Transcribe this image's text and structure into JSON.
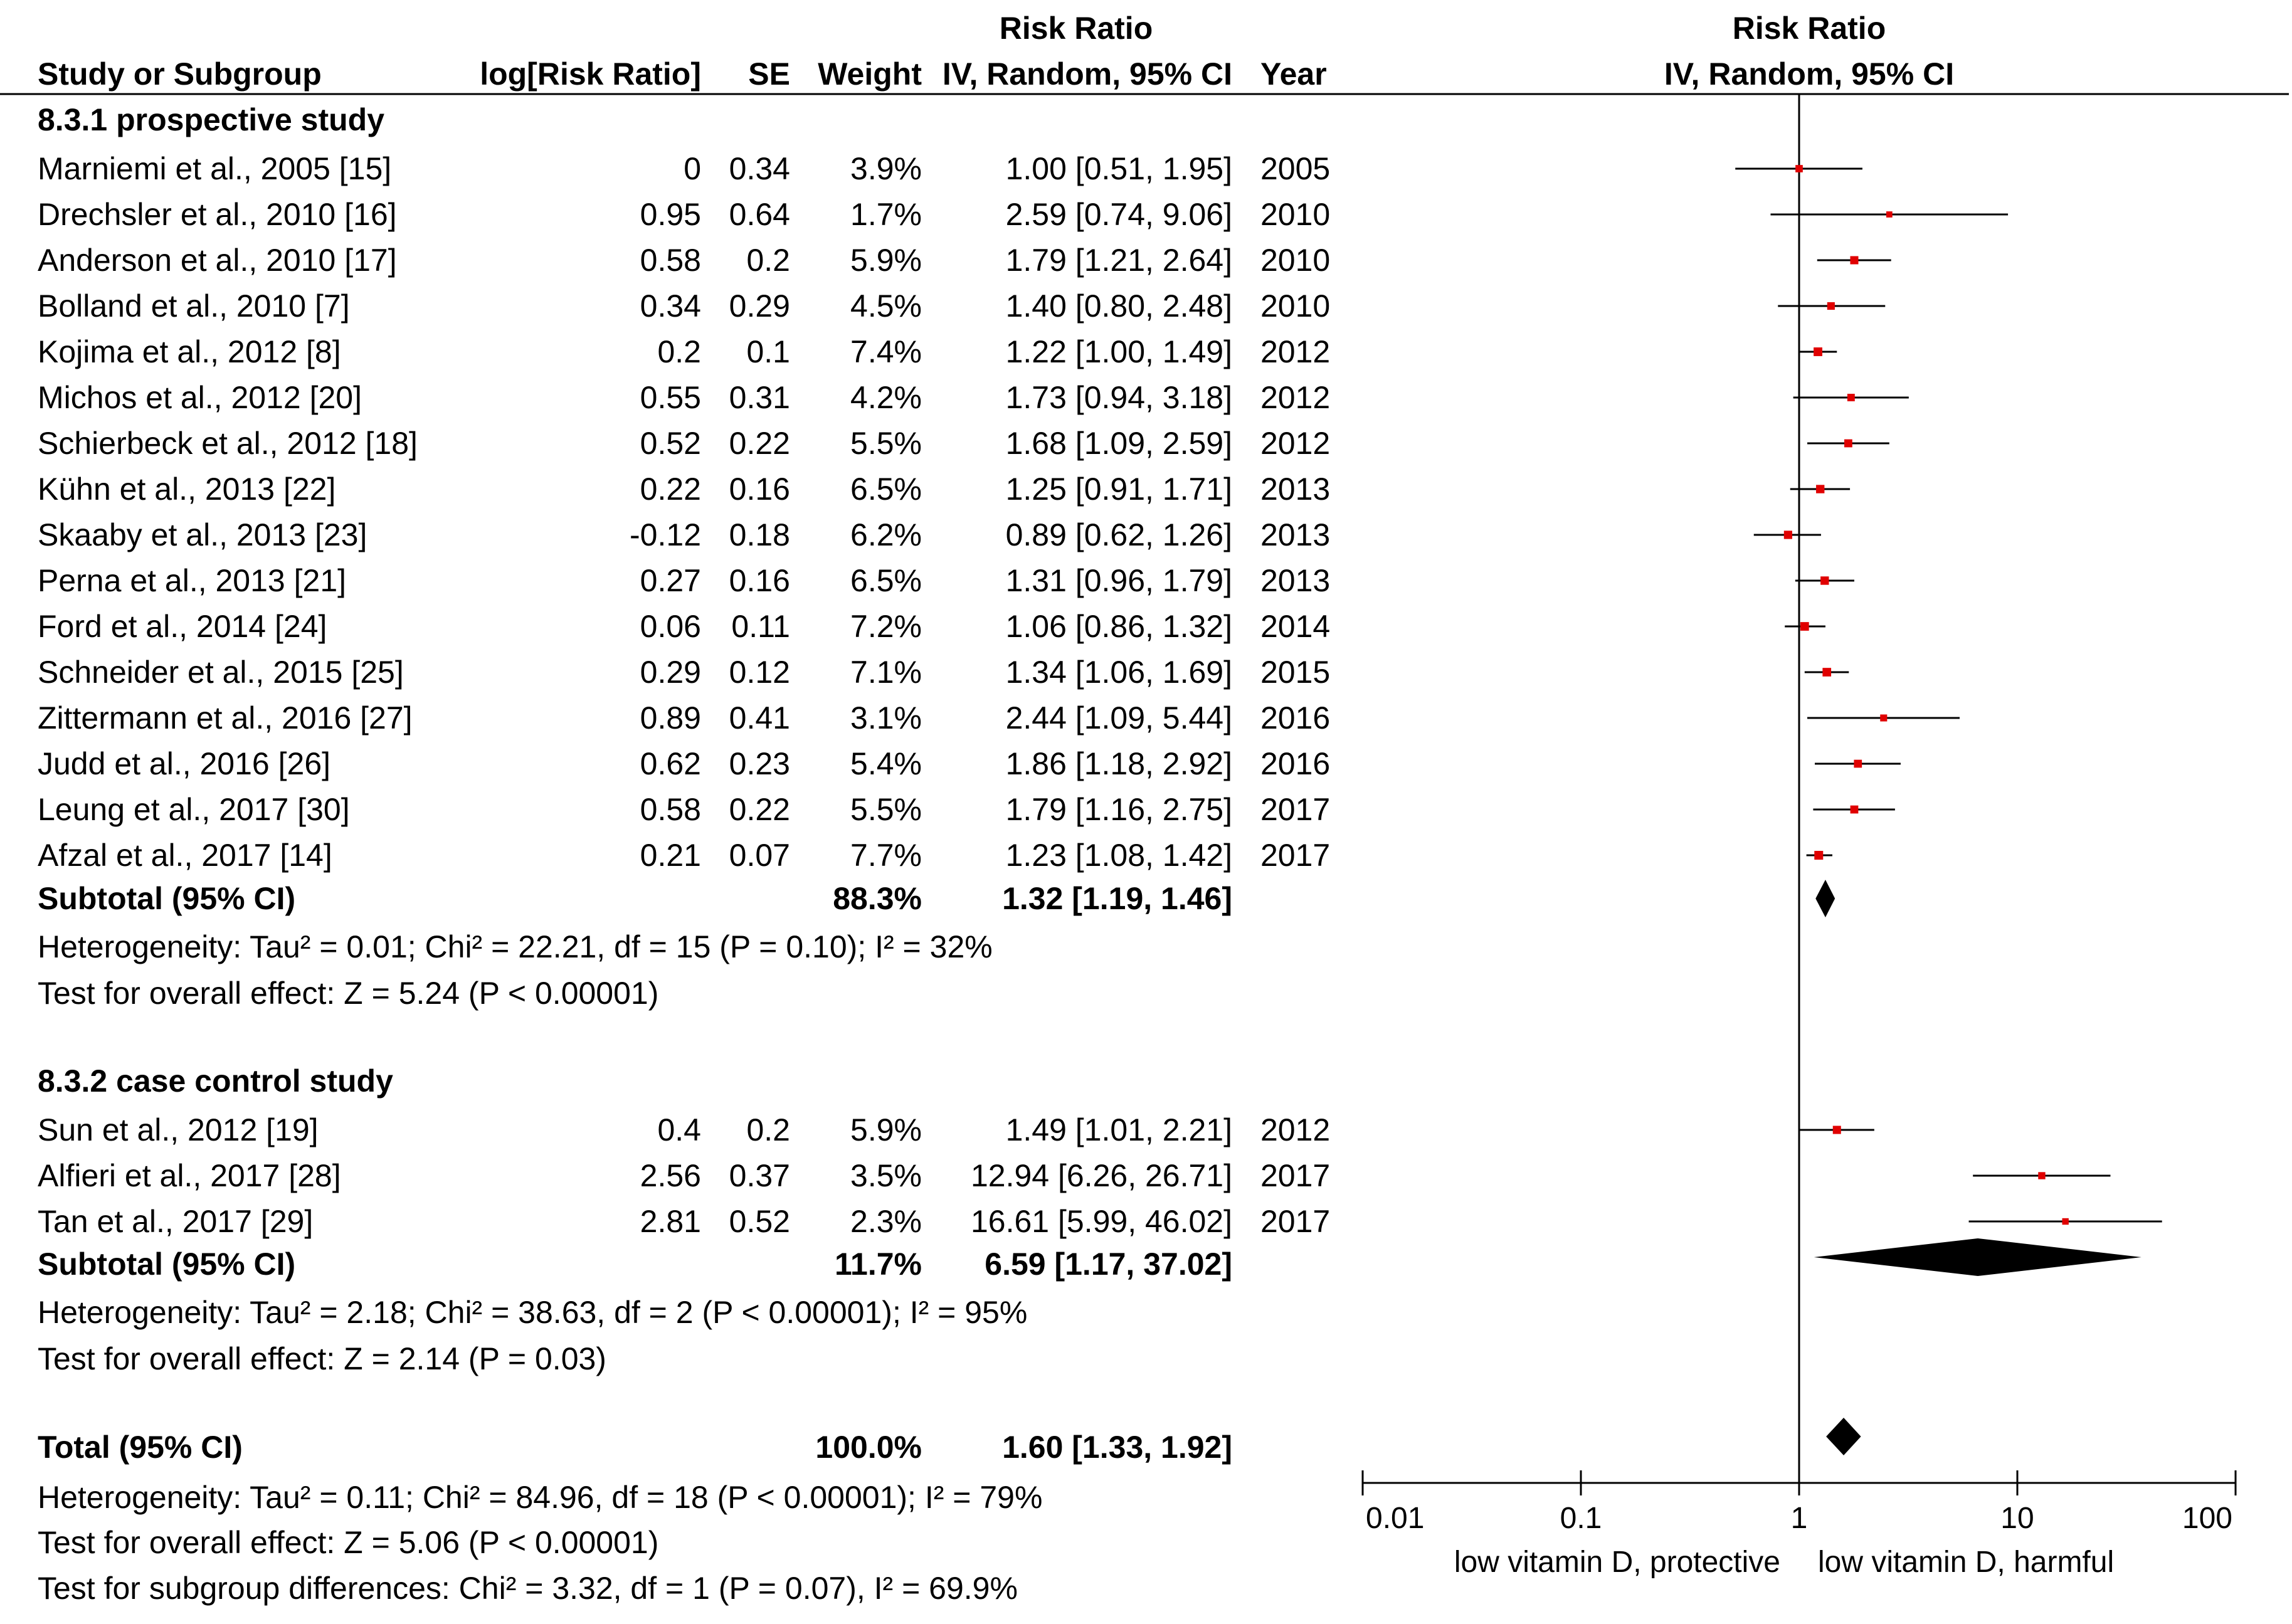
{
  "chart_data": {
    "type": "forest",
    "header": {
      "group_title_left": "Risk Ratio",
      "group_title_right": "Risk Ratio",
      "col_study": "Study or Subgroup",
      "col_logrr": "log[Risk Ratio]",
      "col_se": "SE",
      "col_weight": "Weight",
      "col_ci": "IV, Random, 95% CI",
      "col_year": "Year",
      "plot_title": "IV, Random, 95% CI"
    },
    "subgroups": [
      {
        "name": "8.3.1 prospective study",
        "studies": [
          {
            "study": "Marniemi et al., 2005 [15]",
            "logrr": "0",
            "se": "0.34",
            "weight": "3.9%",
            "ci": "1.00 [0.51, 1.95]",
            "year": "2005",
            "rr": 1.0,
            "lo": 0.51,
            "hi": 1.95
          },
          {
            "study": "Drechsler et al.,  2010 [16]",
            "logrr": "0.95",
            "se": "0.64",
            "weight": "1.7%",
            "ci": "2.59 [0.74, 9.06]",
            "year": "2010",
            "rr": 2.59,
            "lo": 0.74,
            "hi": 9.06
          },
          {
            "study": "Anderson et al., 2010 [17]",
            "logrr": "0.58",
            "se": "0.2",
            "weight": "5.9%",
            "ci": "1.79 [1.21, 2.64]",
            "year": "2010",
            "rr": 1.79,
            "lo": 1.21,
            "hi": 2.64
          },
          {
            "study": "Bolland et al., 2010 [7]",
            "logrr": "0.34",
            "se": "0.29",
            "weight": "4.5%",
            "ci": "1.40 [0.80, 2.48]",
            "year": "2010",
            "rr": 1.4,
            "lo": 0.8,
            "hi": 2.48
          },
          {
            "study": "Kojima et al., 2012 [8]",
            "logrr": "0.2",
            "se": "0.1",
            "weight": "7.4%",
            "ci": "1.22 [1.00, 1.49]",
            "year": "2012",
            "rr": 1.22,
            "lo": 1.0,
            "hi": 1.49
          },
          {
            "study": "Michos et al., 2012 [20]",
            "logrr": "0.55",
            "se": "0.31",
            "weight": "4.2%",
            "ci": "1.73 [0.94, 3.18]",
            "year": "2012",
            "rr": 1.73,
            "lo": 0.94,
            "hi": 3.18
          },
          {
            "study": "Schierbeck et al., 2012 [18]",
            "logrr": "0.52",
            "se": "0.22",
            "weight": "5.5%",
            "ci": "1.68 [1.09, 2.59]",
            "year": "2012",
            "rr": 1.68,
            "lo": 1.09,
            "hi": 2.59
          },
          {
            "study": "Kühn et al., 2013 [22]",
            "logrr": "0.22",
            "se": "0.16",
            "weight": "6.5%",
            "ci": "1.25 [0.91, 1.71]",
            "year": "2013",
            "rr": 1.25,
            "lo": 0.91,
            "hi": 1.71
          },
          {
            "study": "Skaaby et al., 2013 [23]",
            "logrr": "-0.12",
            "se": "0.18",
            "weight": "6.2%",
            "ci": "0.89 [0.62, 1.26]",
            "year": "2013",
            "rr": 0.89,
            "lo": 0.62,
            "hi": 1.26
          },
          {
            "study": "Perna et al., 2013 [21]",
            "logrr": "0.27",
            "se": "0.16",
            "weight": "6.5%",
            "ci": "1.31 [0.96, 1.79]",
            "year": "2013",
            "rr": 1.31,
            "lo": 0.96,
            "hi": 1.79
          },
          {
            "study": "Ford et al., 2014 [24]",
            "logrr": "0.06",
            "se": "0.11",
            "weight": "7.2%",
            "ci": "1.06 [0.86, 1.32]",
            "year": "2014",
            "rr": 1.06,
            "lo": 0.86,
            "hi": 1.32
          },
          {
            "study": "Schneider et al., 2015 [25]",
            "logrr": "0.29",
            "se": "0.12",
            "weight": "7.1%",
            "ci": "1.34 [1.06, 1.69]",
            "year": "2015",
            "rr": 1.34,
            "lo": 1.06,
            "hi": 1.69
          },
          {
            "study": "Zittermann et al., 2016 [27]",
            "logrr": "0.89",
            "se": "0.41",
            "weight": "3.1%",
            "ci": "2.44 [1.09, 5.44]",
            "year": "2016",
            "rr": 2.44,
            "lo": 1.09,
            "hi": 5.44
          },
          {
            "study": "Judd et al., 2016 [26]",
            "logrr": "0.62",
            "se": "0.23",
            "weight": "5.4%",
            "ci": "1.86 [1.18, 2.92]",
            "year": "2016",
            "rr": 1.86,
            "lo": 1.18,
            "hi": 2.92
          },
          {
            "study": "Leung et al., 2017 [30]",
            "logrr": "0.58",
            "se": "0.22",
            "weight": "5.5%",
            "ci": "1.79 [1.16, 2.75]",
            "year": "2017",
            "rr": 1.79,
            "lo": 1.16,
            "hi": 2.75
          },
          {
            "study": "Afzal et al., 2017 [14]",
            "logrr": "0.21",
            "se": "0.07",
            "weight": "7.7%",
            "ci": "1.23 [1.08, 1.42]",
            "year": "2017",
            "rr": 1.23,
            "lo": 1.08,
            "hi": 1.42
          }
        ],
        "subtotal": {
          "label": "Subtotal (95% CI)",
          "weight": "88.3%",
          "ci": "1.32 [1.19, 1.46]",
          "rr": 1.32,
          "lo": 1.19,
          "hi": 1.46
        },
        "heterogeneity": "Heterogeneity: Tau² = 0.01; Chi² = 22.21, df = 15 (P = 0.10); I² = 32%",
        "overall_effect": "Test for overall effect: Z = 5.24 (P < 0.00001)"
      },
      {
        "name": "8.3.2 case control study",
        "studies": [
          {
            "study": "Sun et al., 2012 [19]",
            "logrr": "0.4",
            "se": "0.2",
            "weight": "5.9%",
            "ci": "1.49 [1.01, 2.21]",
            "year": "2012",
            "rr": 1.49,
            "lo": 1.01,
            "hi": 2.21
          },
          {
            "study": "Alfieri et al., 2017 [28]",
            "logrr": "2.56",
            "se": "0.37",
            "weight": "3.5%",
            "ci": "12.94 [6.26, 26.71]",
            "year": "2017",
            "rr": 12.94,
            "lo": 6.26,
            "hi": 26.71
          },
          {
            "study": "Tan et al., 2017 [29]",
            "logrr": "2.81",
            "se": "0.52",
            "weight": "2.3%",
            "ci": "16.61 [5.99, 46.02]",
            "year": "2017",
            "rr": 16.61,
            "lo": 5.99,
            "hi": 46.02
          }
        ],
        "subtotal": {
          "label": "Subtotal (95% CI)",
          "weight": "11.7%",
          "ci": "6.59 [1.17, 37.02]",
          "rr": 6.59,
          "lo": 1.17,
          "hi": 37.02
        },
        "heterogeneity": "Heterogeneity: Tau² = 2.18; Chi² = 38.63, df = 2 (P < 0.00001); I² = 95%",
        "overall_effect": "Test for overall effect: Z = 2.14 (P = 0.03)"
      }
    ],
    "total": {
      "label": "Total (95% CI)",
      "weight": "100.0%",
      "ci": "1.60 [1.33, 1.92]",
      "rr": 1.6,
      "lo": 1.33,
      "hi": 1.92,
      "heterogeneity": "Heterogeneity: Tau² = 0.11; Chi² = 84.96, df = 18 (P < 0.00001); I² = 79%",
      "overall_effect": "Test for overall effect: Z = 5.06 (P < 0.00001)",
      "subgroup_differences": "Test for subgroup differences: Chi² = 3.32, df = 1 (P = 0.07), I² = 69.9%"
    },
    "x_axis": {
      "scale": "log",
      "ticks": [
        0.01,
        0.1,
        1,
        10,
        100
      ],
      "tick_labels": [
        "0.01",
        "0.1",
        "1",
        "10",
        "100"
      ],
      "xlim": [
        0.01,
        100
      ],
      "left_label": "low vitamin D, protective",
      "right_label": "low vitamin D, harmful"
    },
    "colors": {
      "marker": "#e00000",
      "line": "#000000",
      "diamond": "#000000"
    }
  }
}
